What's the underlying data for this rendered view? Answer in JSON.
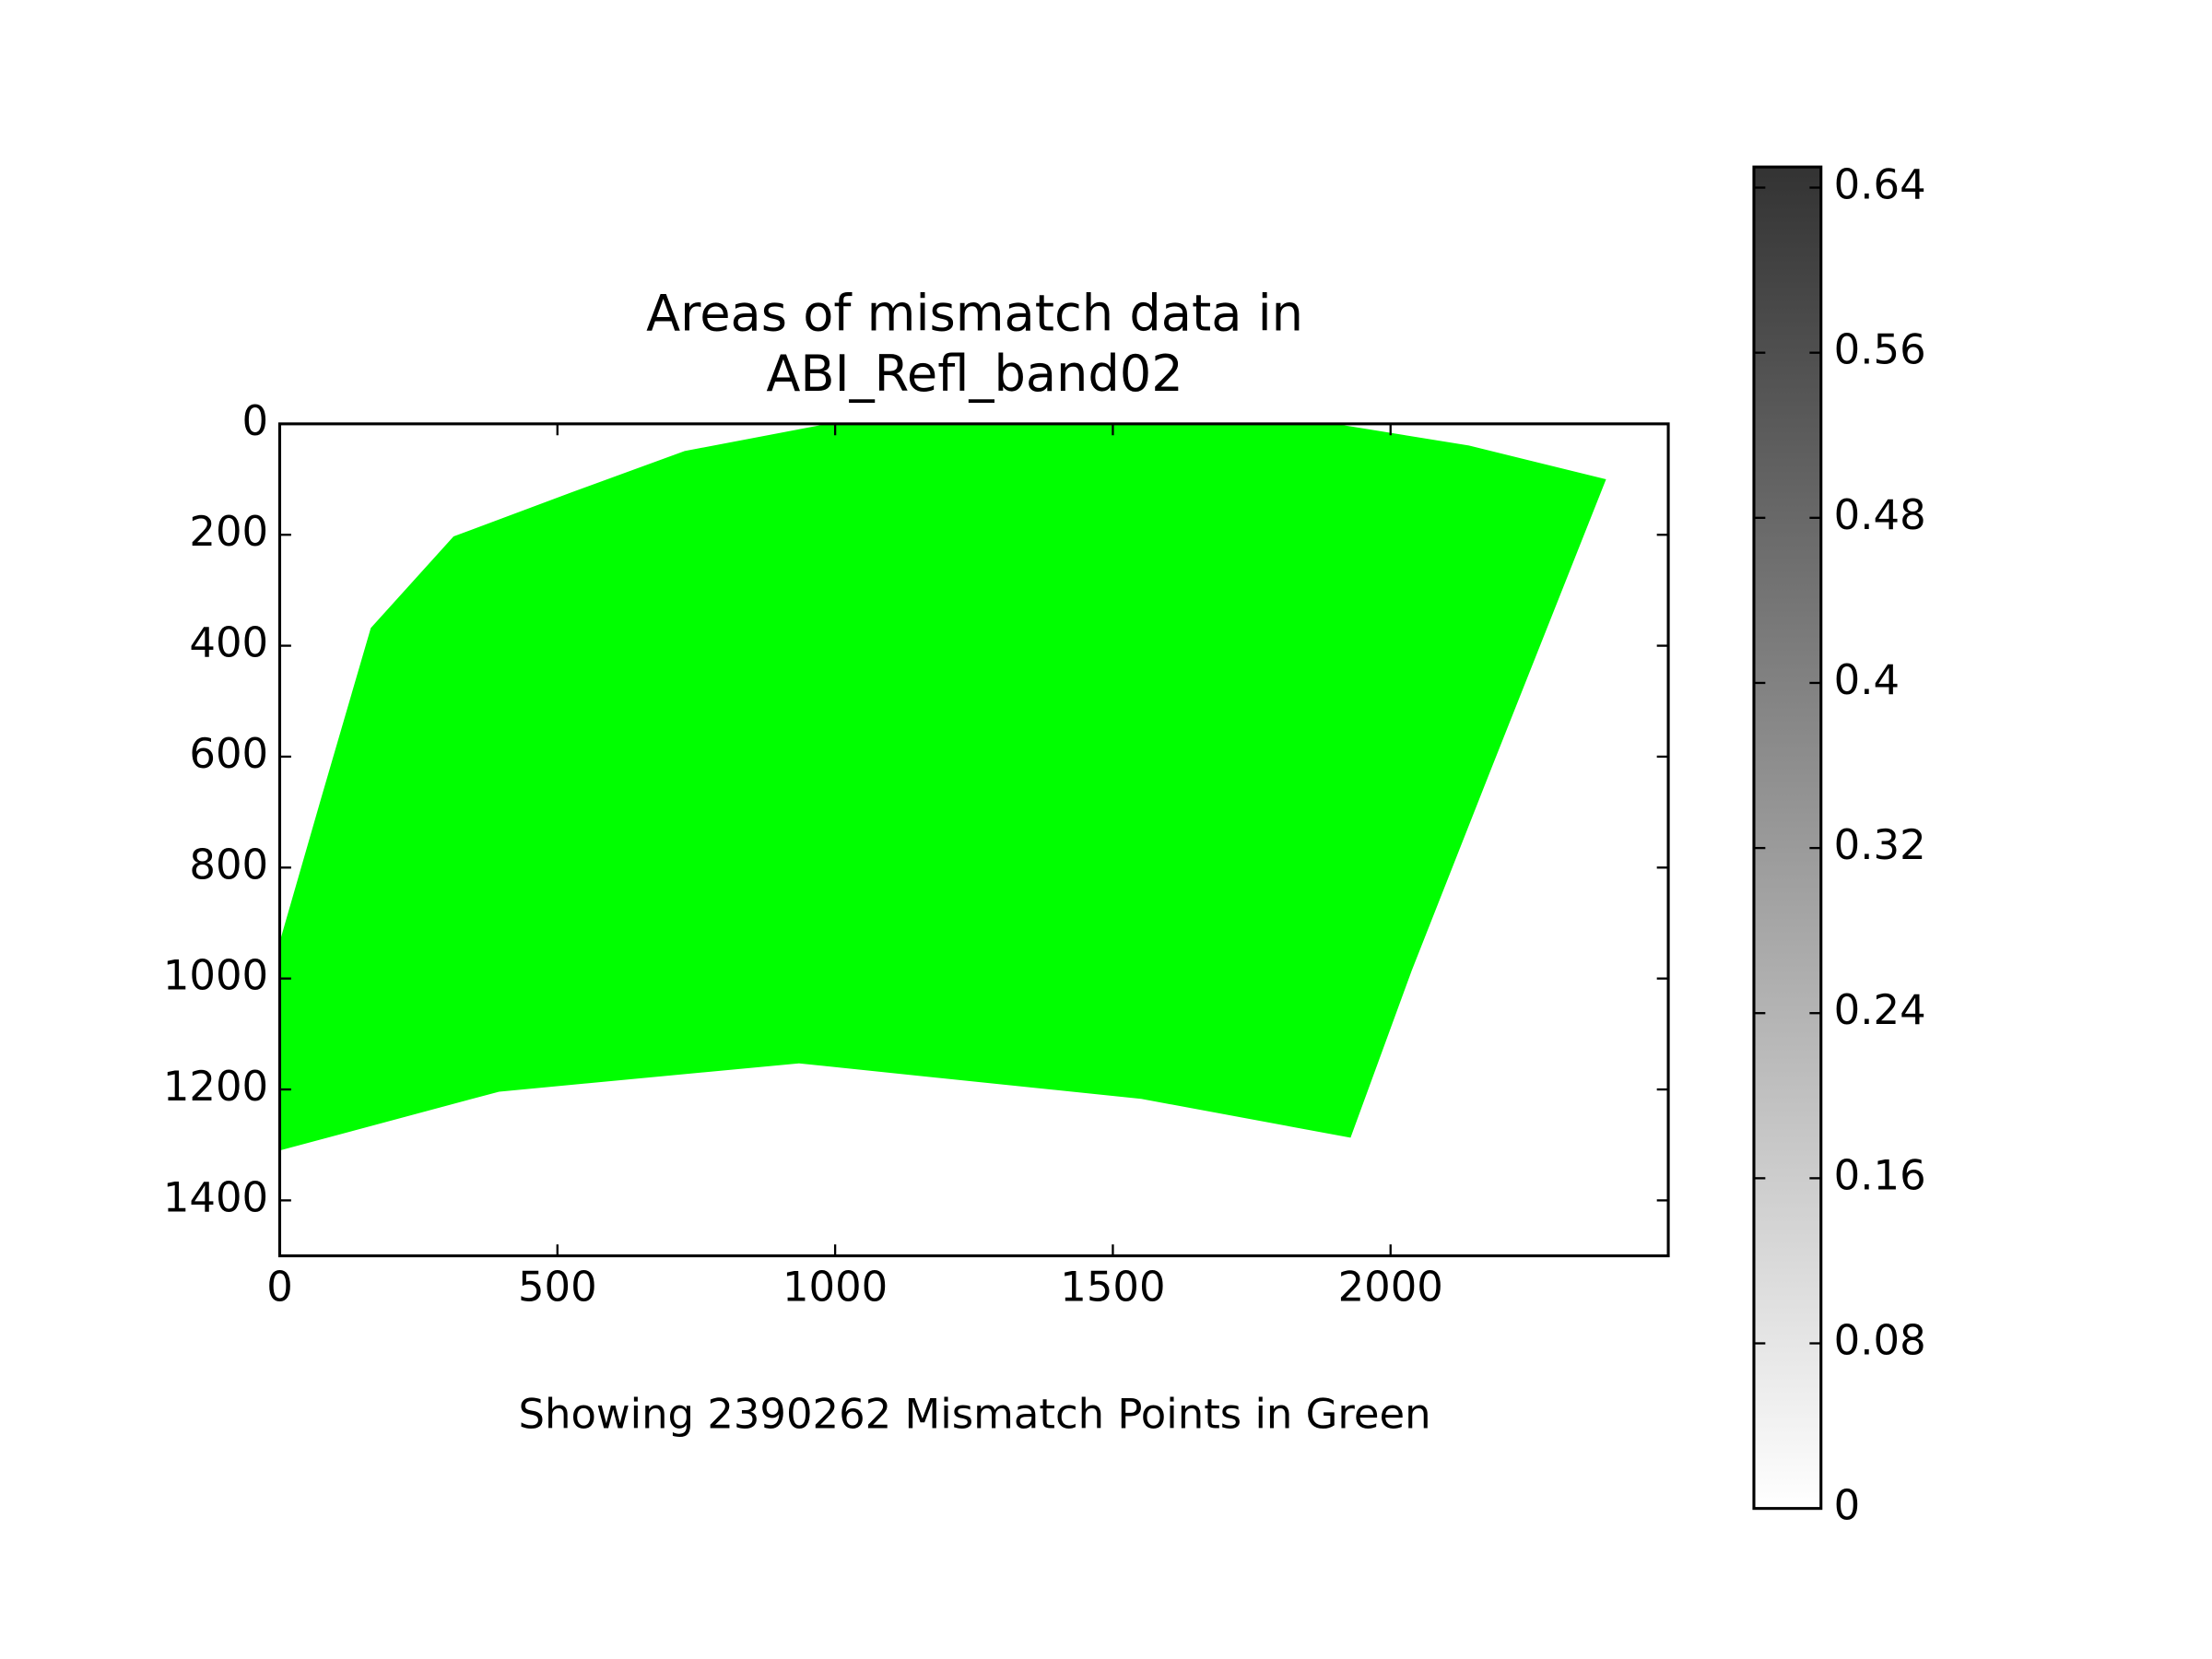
{
  "chart_data": {
    "type": "image",
    "title": "Areas of mismatch data in\nABI_Refl_band02",
    "xlabel": "Showing 2390262 Mismatch Points in Green",
    "xlim": [
      0,
      2500
    ],
    "ylim": [
      1500,
      0
    ],
    "xticks": [
      0,
      500,
      1000,
      1500,
      2000
    ],
    "yticks": [
      0,
      200,
      400,
      600,
      800,
      1000,
      1200,
      1400
    ],
    "mismatch_region": {
      "color": "#00ff00",
      "x": [
        313,
        524,
        729,
        986,
        1900,
        2141,
        2388,
        2180,
        2038,
        1928,
        1551,
        935,
        395,
        0,
        0,
        74,
        164
      ],
      "y": [
        203,
        124,
        49,
        0,
        0,
        39,
        100,
        625,
        986,
        1287,
        1217,
        1153,
        1204,
        1310,
        934,
        677,
        368
      ]
    },
    "colorbar": {
      "clim": [
        0,
        0.65
      ],
      "colors": [
        "#ffffff",
        "#333333"
      ],
      "ticks": [
        0,
        0.08,
        0.16,
        0.24,
        0.32,
        0.4,
        0.48,
        0.56,
        0.64
      ]
    }
  }
}
